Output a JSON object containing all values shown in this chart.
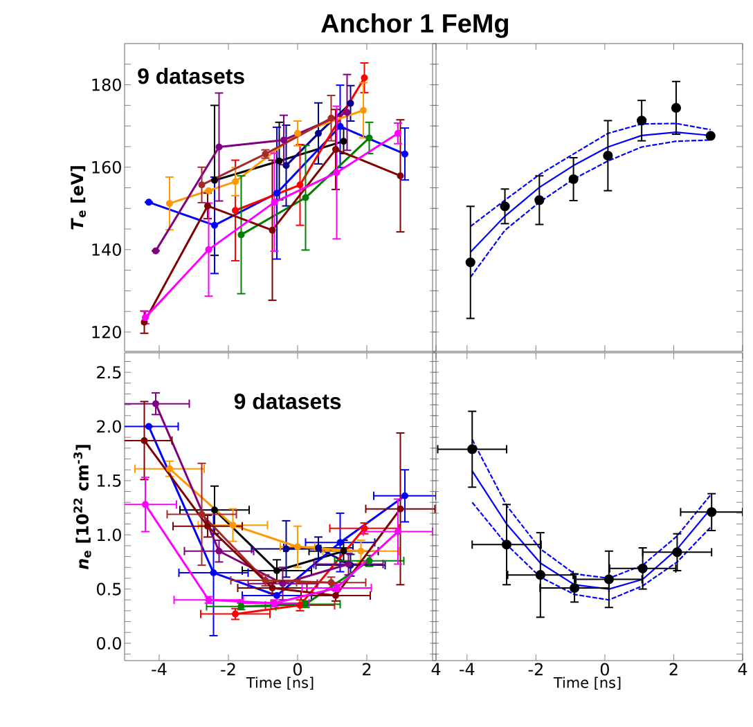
{
  "chart_data": [
    {
      "type": "line",
      "title": "Anchor 1 FeMg",
      "ylabel": "*T*$_{e}$ [eV]",
      "annotations": [
        "9 datasets"
      ],
      "xlim": [
        -5,
        4
      ],
      "xticks": [
        -4,
        -2,
        0,
        2,
        4
      ],
      "ylim": [
        115.3,
        190
      ],
      "yticks": [
        120,
        {
          "value": 125,
          "label": null
        },
        {
          "value": 130,
          "label": null
        },
        {
          "value": 135,
          "label": null
        },
        140,
        {
          "value": 145,
          "label": null
        },
        {
          "value": 150,
          "label": null
        },
        {
          "value": 155,
          "label": null
        },
        160,
        {
          "value": 165,
          "label": null
        },
        {
          "value": 170,
          "label": null
        },
        {
          "value": 175,
          "label": null
        },
        180,
        {
          "value": 185,
          "label": null
        }
      ],
      "tick_labels": "y",
      "marker": "circle",
      "series": [
        {
          "color": "#000000",
          "x": [
            -2.4,
            -0.53,
            1.33
          ],
          "values": [
            156.8,
            161.5,
            166.3
          ],
          "errors": [
            18.2,
            9.4,
            3
          ]
        },
        {
          "color": "#0000ff",
          "x": [
            -4.3,
            -2.4,
            -0.6,
            1.23,
            3.1
          ],
          "values": [
            151.5,
            145.9,
            153.7,
            169.9,
            163.2
          ],
          "errors": [
            null,
            11.7,
            16,
            10,
            6.3
          ]
        },
        {
          "color": "#00008b",
          "x": [
            -0.33,
            0.6,
            1.53
          ],
          "values": [
            160.4,
            168.2,
            175.5
          ],
          "errors": [
            9.8,
            7.4,
            4.3
          ]
        },
        {
          "color": "#ff0000",
          "x": [
            -1.8,
            0.07,
            1.93
          ],
          "values": [
            149.5,
            155.7,
            181.7
          ],
          "errors": [
            12.2,
            9.8,
            3.6
          ]
        },
        {
          "color": "#ff9900",
          "x": [
            -3.7,
            -2.57,
            -1.8,
            0,
            1.9
          ],
          "values": [
            151.2,
            154.3,
            156.5,
            168.2,
            173.8
          ],
          "errors": [
            6.4,
            null,
            3.4,
            3,
            6.7
          ]
        },
        {
          "color": "#008000",
          "x": [
            -1.63,
            0.23,
            2.07
          ],
          "values": [
            143.6,
            152.6,
            167.1
          ],
          "errors": [
            14.3,
            12.7,
            3.8
          ]
        },
        {
          "color": "#800080",
          "x": [
            -4.1,
            -2.27,
            -0.4,
            1.43
          ],
          "values": [
            139.7,
            164.9,
            166.6,
            173.3
          ],
          "errors": [
            null,
            13.1,
            6,
            9.2
          ]
        },
        {
          "color": "#a52a2a",
          "x": [
            -2.77,
            -0.93,
            0.97
          ],
          "values": [
            155.7,
            163.2,
            171.9
          ],
          "errors": [
            4.3,
            1,
            5.5
          ]
        },
        {
          "color": "#800000",
          "x": [
            -4.43,
            -2.6,
            -0.73,
            1.1,
            2.97
          ],
          "values": [
            122.4,
            150.6,
            144.7,
            164.3,
            157.9
          ],
          "errors": [
            2.7,
            3.1,
            17,
            9.7,
            13.6
          ]
        },
        {
          "color": "#ff00ff",
          "x": [
            -4.4,
            -2.57,
            -0.67,
            1.13,
            2.9
          ],
          "values": [
            123.5,
            140.0,
            151.5,
            158.7,
            168.2
          ],
          "errors": [
            1.5,
            11.3,
            11.9,
            16.1,
            2.5
          ]
        }
      ]
    },
    {
      "type": "scatter",
      "xlim": [
        -5,
        4
      ],
      "xticks": [
        -4,
        -2,
        0,
        2,
        4
      ],
      "ylim": [
        115.3,
        190
      ],
      "yticks": [
        120,
        125,
        130,
        135,
        140,
        145,
        150,
        155,
        160,
        165,
        170,
        175,
        180,
        185
      ],
      "tick_labels": false,
      "marker": "circle",
      "series": [
        {
          "color": "#0000ff",
          "type": "line",
          "marker": "none",
          "x": [
            -3.9,
            -2.9,
            -1.9,
            -0.91,
            0.09,
            1.07,
            2.07,
            3.07
          ],
          "values": [
            139.4,
            148.1,
            155.1,
            160.4,
            164.9,
            167.7,
            168.5,
            167.7
          ]
        },
        {
          "color": "#0000ff",
          "type": "line",
          "marker": "none",
          "line_style": "dashed",
          "x": [
            -3.9,
            -2.9,
            -1.9,
            -0.91,
            0.09,
            1.07,
            2.07,
            3.07
          ],
          "values": [
            145.6,
            152.0,
            158.2,
            163.2,
            168.2,
            170.5,
            170.6,
            169.1
          ]
        },
        {
          "color": "#0000ff",
          "type": "line",
          "marker": "none",
          "line_style": "dashed",
          "x": [
            -3.9,
            -2.9,
            -1.9,
            -0.91,
            0.09,
            1.07,
            2.07,
            3.07
          ],
          "values": [
            133.3,
            144.7,
            151.5,
            157.1,
            161.5,
            164.9,
            166.3,
            166.6
          ]
        },
        {
          "color": "#000000",
          "x": [
            -3.9,
            -2.9,
            -1.9,
            -0.91,
            0.09,
            1.07,
            2.07,
            3.07
          ],
          "values": [
            136.9,
            150.5,
            152.0,
            157.1,
            162.8,
            171.3,
            174.4,
            167.6
          ],
          "errors": [
            13.6,
            4.2,
            5.9,
            5.2,
            8.5,
            4.9,
            6.4,
            null
          ]
        }
      ]
    },
    {
      "type": "line",
      "xlabel": "Time [ns]",
      "ylabel": "*n*$_{e}$ [10$^{22}$ cm$^{-3}$]",
      "annotations": [
        "9 datasets"
      ],
      "xlim": [
        -5,
        4
      ],
      "xticks": [
        -4,
        -2,
        0,
        2,
        4
      ],
      "ylim": [
        -0.16,
        2.68
      ],
      "yticks": [
        {
          "value": -0.1,
          "label": null
        },
        {
          "value": 0,
          "label": "0.0"
        },
        {
          "value": 0.1,
          "label": null
        },
        {
          "value": 0.2,
          "label": null
        },
        {
          "value": 0.3,
          "label": null
        },
        {
          "value": 0.4,
          "label": null
        },
        {
          "value": 0.5,
          "label": "0.5"
        },
        {
          "value": 0.6,
          "label": null
        },
        {
          "value": 0.7,
          "label": null
        },
        {
          "value": 0.8,
          "label": null
        },
        {
          "value": 0.9,
          "label": null
        },
        {
          "value": 1.0,
          "label": "1.0"
        },
        {
          "value": 1.1,
          "label": null
        },
        {
          "value": 1.2,
          "label": null
        },
        {
          "value": 1.3,
          "label": null
        },
        {
          "value": 1.4,
          "label": null
        },
        {
          "value": 1.5,
          "label": "1.5"
        },
        {
          "value": 1.6,
          "label": null
        },
        {
          "value": 1.7,
          "label": null
        },
        {
          "value": 1.8,
          "label": null
        },
        {
          "value": 1.9,
          "label": null
        },
        {
          "value": 2.0,
          "label": "2.0"
        },
        {
          "value": 2.1,
          "label": null
        },
        {
          "value": 2.2,
          "label": null
        },
        {
          "value": 2.3,
          "label": null
        },
        {
          "value": 2.4,
          "label": null
        },
        {
          "value": 2.5,
          "label": "2.5"
        },
        {
          "value": 2.6,
          "label": null
        }
      ],
      "marker": "circle",
      "series": [
        {
          "color": "#000000",
          "x": [
            -2.4,
            -0.6,
            1.33
          ],
          "values": [
            1.23,
            0.67,
            0.85
          ],
          "errors": [
            0.22,
            0.1,
            0.1
          ],
          "xerrors": [
            1,
            1,
            1
          ]
        },
        {
          "color": "#0000ff",
          "x": [
            -4.3,
            -2.43,
            -0.6,
            1.23,
            3.1
          ],
          "values": [
            2.0,
            0.65,
            0.44,
            0.93,
            1.36
          ],
          "errors": [
            null,
            0.58,
            null,
            0.27,
            0.24
          ],
          "xerrors": [
            0.85,
            1,
            1,
            1,
            0.9
          ]
        },
        {
          "color": "#00008b",
          "x": [
            -0.33,
            0.6,
            1.53
          ],
          "values": [
            0.87,
            0.88,
            0.72
          ],
          "errors": [
            0.26,
            0.1,
            0.1
          ],
          "xerrors": [
            1,
            1,
            1
          ]
        },
        {
          "color": "#ff0000",
          "x": [
            -1.8,
            0.07,
            1.93
          ],
          "values": [
            0.27,
            0.35,
            1.06
          ],
          "errors": [
            0.05,
            0.05,
            0.05
          ],
          "xerrors": [
            1,
            1,
            1
          ]
        },
        {
          "color": "#ff9900",
          "x": [
            -3.7,
            -1.87,
            0,
            1.83
          ],
          "values": [
            1.61,
            1.09,
            0.89,
            0.85
          ],
          "errors": [
            0.07,
            0.15,
            0.19,
            0.1
          ],
          "xerrors": [
            1,
            1,
            0.5,
            1.1
          ]
        },
        {
          "color": "#008000",
          "x": [
            -1.63,
            0.23,
            2.07
          ],
          "values": [
            0.34,
            0.36,
            0.76
          ],
          "errors": [
            0.03,
            0.03,
            0.05
          ],
          "xerrors": [
            1,
            1,
            1
          ]
        },
        {
          "color": "#800080",
          "x": [
            -4.1,
            -2.27,
            -0.43,
            1.47
          ],
          "values": [
            2.21,
            0.85,
            0.55,
            0.73
          ],
          "errors": [
            0.1,
            0.1,
            0.15,
            0.1
          ],
          "xerrors": [
            0.97,
            1,
            1,
            1
          ]
        },
        {
          "color": "#a52a2a",
          "x": [
            -2.77,
            -0.93,
            0.97
          ],
          "values": [
            1.19,
            0.58,
            0.56
          ],
          "errors": [
            0.47,
            0.05,
            0.05
          ],
          "xerrors": [
            1,
            1,
            1
          ]
        },
        {
          "color": "#800000",
          "x": [
            -4.43,
            -2.6,
            -0.73,
            1.1,
            2.97
          ],
          "values": [
            1.87,
            1.08,
            0.51,
            0.44,
            1.24
          ],
          "errors": [
            0.36,
            0.1,
            0.05,
            0.05,
            0.7
          ],
          "xerrors": [
            0.8,
            1,
            1,
            1,
            1
          ]
        },
        {
          "color": "#ff00ff",
          "x": [
            -4.4,
            -2.57,
            -0.67,
            1.13,
            2.9
          ],
          "values": [
            1.28,
            0.4,
            0.37,
            0.51,
            1.03
          ],
          "errors": [
            0.25,
            0.03,
            0.03,
            0.03,
            0.3
          ],
          "xerrors": [
            0.9,
            1,
            1,
            1,
            1
          ]
        }
      ]
    },
    {
      "type": "scatter",
      "xlabel": "Time [ns]",
      "xlim": [
        -5,
        4
      ],
      "xticks": [
        -4,
        -2,
        0,
        2,
        4
      ],
      "ylim": [
        -0.16,
        2.68
      ],
      "yticks": [
        -0.1,
        0,
        0.1,
        0.2,
        0.3,
        0.4,
        0.5,
        0.6,
        0.7,
        0.8,
        0.9,
        1.0,
        1.1,
        1.2,
        1.3,
        1.4,
        1.5,
        1.6,
        1.7,
        1.8,
        1.9,
        2.0,
        2.1,
        2.2,
        2.3,
        2.4,
        2.5,
        2.6
      ],
      "tick_labels": "x",
      "marker": "circle",
      "series": [
        {
          "color": "#0000ff",
          "type": "line",
          "marker": "none",
          "x": [
            -3.85,
            -2.85,
            -1.87,
            -0.88,
            0.12,
            1.1,
            2.1,
            3.1
          ],
          "values": [
            1.59,
            1.1,
            0.74,
            0.54,
            0.5,
            0.59,
            0.87,
            1.25
          ]
        },
        {
          "color": "#0000ff",
          "type": "line",
          "marker": "none",
          "line_style": "dashed",
          "x": [
            -3.85,
            -2.85,
            -1.87,
            -0.88,
            0.12,
            1.1,
            2.1,
            3.1
          ],
          "values": [
            1.88,
            1.27,
            0.87,
            0.64,
            0.6,
            0.72,
            0.99,
            1.38
          ]
        },
        {
          "color": "#0000ff",
          "type": "line",
          "marker": "none",
          "line_style": "dashed",
          "x": [
            -3.85,
            -2.85,
            -1.87,
            -0.88,
            0.12,
            1.1,
            2.1,
            3.1
          ],
          "values": [
            1.3,
            0.91,
            0.61,
            0.45,
            0.4,
            0.53,
            0.75,
            1.08
          ]
        },
        {
          "color": "#000000",
          "x": [
            -3.85,
            -2.85,
            -1.87,
            -0.88,
            0.12,
            1.1,
            2.1,
            3.1
          ],
          "values": [
            1.79,
            0.91,
            0.63,
            0.51,
            0.59,
            0.69,
            0.84,
            1.21
          ],
          "errors": [
            0.35,
            0.37,
            0.39,
            0.13,
            0.26,
            0.19,
            0.17,
            0.17
          ],
          "xerrors": [
            1,
            1,
            0.95,
            1,
            0.96,
            0.96,
            1,
            0.9
          ]
        }
      ]
    }
  ]
}
